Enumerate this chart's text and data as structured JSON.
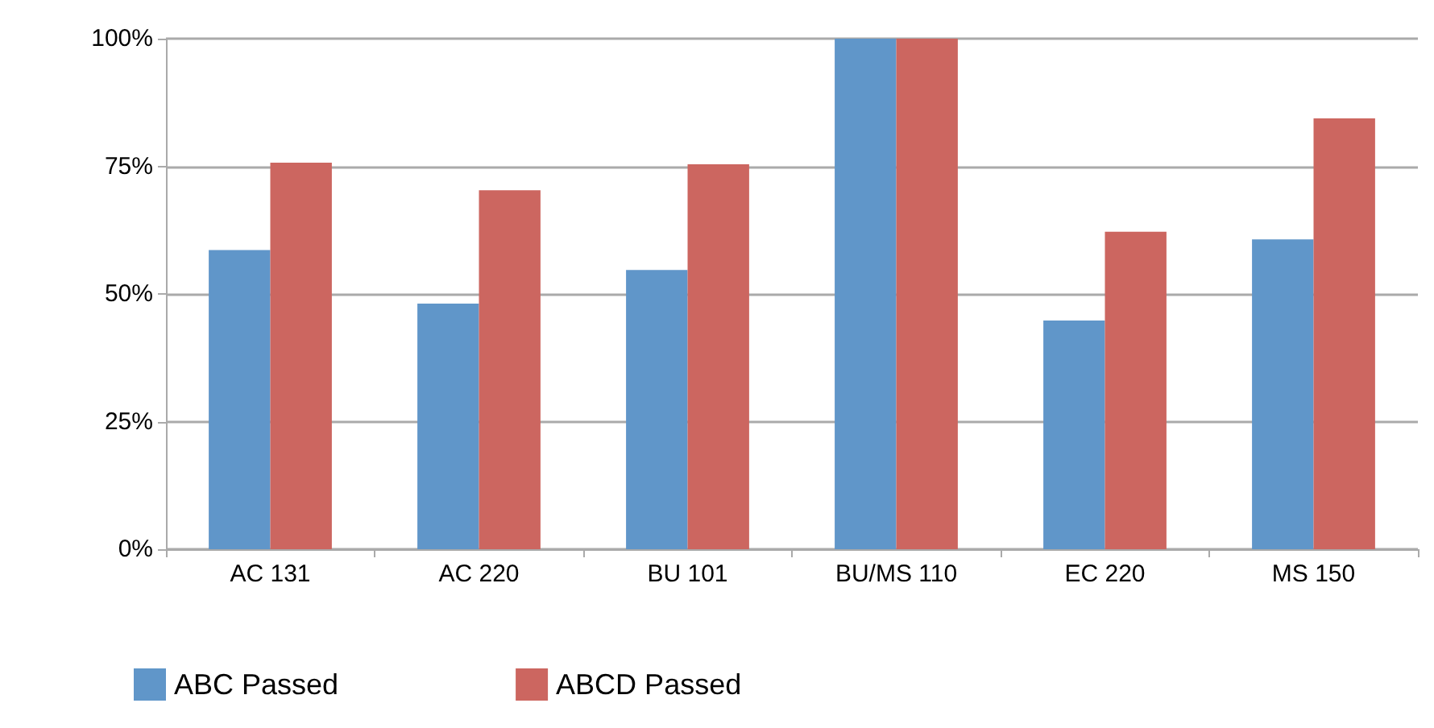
{
  "chart_data": {
    "type": "bar",
    "categories": [
      "AC 131",
      "AC 220",
      "BU 101",
      "BU/MS 110",
      "EC 220",
      "MS 150"
    ],
    "series": [
      {
        "name": "ABC Passed",
        "color": "#6096c9",
        "values": [
          58.6,
          48.1,
          54.7,
          100,
          44.8,
          60.7
        ]
      },
      {
        "name": "ABCD Passed",
        "color": "#cc6660",
        "values": [
          75.7,
          70.3,
          75.4,
          100,
          62.2,
          84.4
        ]
      }
    ],
    "ylim": [
      0,
      100
    ],
    "yticks": [
      {
        "value": 0,
        "label": "0%"
      },
      {
        "value": 25,
        "label": "25%"
      },
      {
        "value": 50,
        "label": "50%"
      },
      {
        "value": 75,
        "label": "75%"
      },
      {
        "value": 100,
        "label": "100%"
      }
    ],
    "grid": "y",
    "legend": "bottom left"
  }
}
